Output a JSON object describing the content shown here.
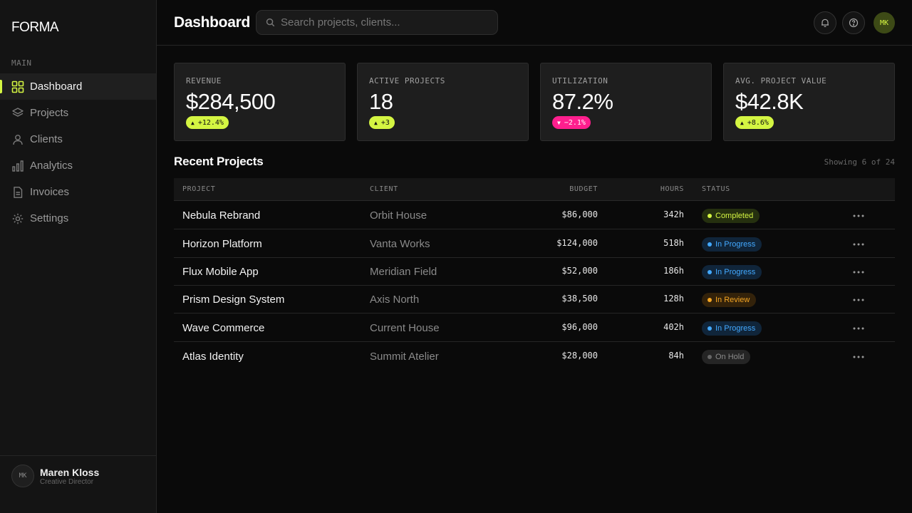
{
  "sidebar": {
    "logo": "FORMA",
    "section_label": "MAIN",
    "items": [
      {
        "label": "Dashboard",
        "icon": "grid-icon",
        "active": true
      },
      {
        "label": "Projects",
        "icon": "layers-icon"
      },
      {
        "label": "Clients",
        "icon": "user-icon"
      },
      {
        "label": "Analytics",
        "icon": "bar-chart-icon"
      },
      {
        "label": "Invoices",
        "icon": "document-icon"
      },
      {
        "label": "Settings",
        "icon": "gear-icon"
      }
    ],
    "user": {
      "initials": "MK",
      "name": "Maren Kloss",
      "role": "Creative Director"
    }
  },
  "header": {
    "title": "Dashboard",
    "search": {
      "placeholder": "Search projects, clients...",
      "value": ""
    },
    "avatar_initials": "MK"
  },
  "stats": [
    {
      "label": "REVENUE",
      "value": "$284,500",
      "delta": "+12.4%",
      "direction": "up"
    },
    {
      "label": "ACTIVE PROJECTS",
      "value": "18",
      "delta": "+3",
      "direction": "up"
    },
    {
      "label": "UTILIZATION",
      "value": "87.2%",
      "delta": "−2.1%",
      "direction": "down"
    },
    {
      "label": "AVG. PROJECT VALUE",
      "value": "$42.8K",
      "delta": "+8.6%",
      "direction": "up"
    }
  ],
  "projects": {
    "title": "Recent Projects",
    "showing": "Showing 6 of 24",
    "columns": {
      "project": "PROJECT",
      "client": "CLIENT",
      "budget": "BUDGET",
      "hours": "HOURS",
      "status": "STATUS"
    },
    "rows": [
      {
        "project": "Nebula Rebrand",
        "client": "Orbit House",
        "budget": "$86,000",
        "hours": "342h",
        "status": "Completed",
        "status_kind": "completed"
      },
      {
        "project": "Horizon Platform",
        "client": "Vanta Works",
        "budget": "$124,000",
        "hours": "518h",
        "status": "In Progress",
        "status_kind": "progress"
      },
      {
        "project": "Flux Mobile App",
        "client": "Meridian Field",
        "budget": "$52,000",
        "hours": "186h",
        "status": "In Progress",
        "status_kind": "progress"
      },
      {
        "project": "Prism Design System",
        "client": "Axis North",
        "budget": "$38,500",
        "hours": "128h",
        "status": "In Review",
        "status_kind": "review"
      },
      {
        "project": "Wave Commerce",
        "client": "Current House",
        "budget": "$96,000",
        "hours": "402h",
        "status": "In Progress",
        "status_kind": "progress"
      },
      {
        "project": "Atlas Identity",
        "client": "Summit Atelier",
        "budget": "$28,000",
        "hours": "84h",
        "status": "On Hold",
        "status_kind": "hold"
      }
    ]
  },
  "colors": {
    "accent": "#d4f542",
    "negative": "#ff1f8e",
    "progress": "#43a9ff",
    "review": "#f5a623"
  }
}
